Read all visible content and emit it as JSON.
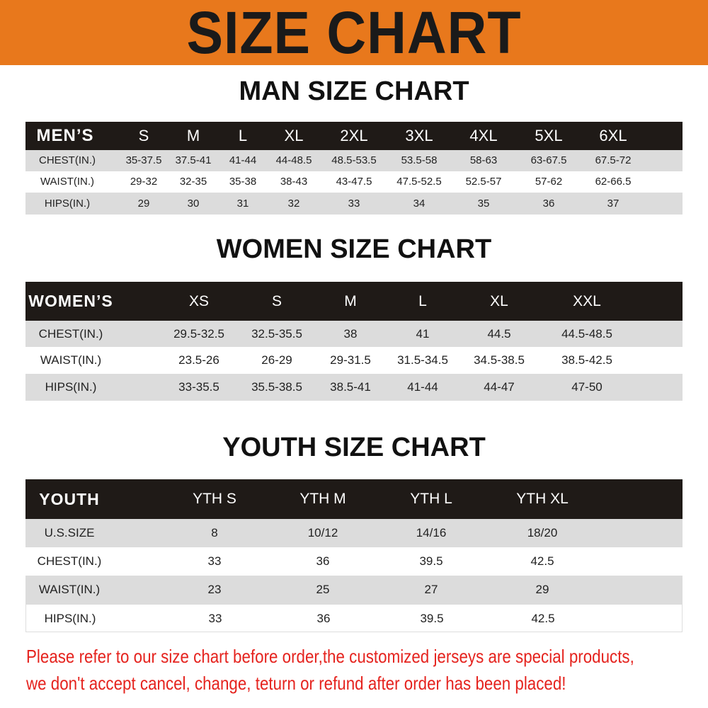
{
  "banner_title": "SIZE CHART",
  "colors": {
    "banner": "#e8781c",
    "header_row": "#1f1a17",
    "stripe": "#dcdcdc",
    "notice": "#e5231e"
  },
  "men": {
    "title": "MAN SIZE CHART",
    "header": [
      "MEN’S",
      "S",
      "M",
      "L",
      "XL",
      "2XL",
      "3XL",
      "4XL",
      "5XL",
      "6XL"
    ],
    "rows": [
      [
        "CHEST(IN.)",
        "35-37.5",
        "37.5-41",
        "41-44",
        "44-48.5",
        "48.5-53.5",
        "53.5-58",
        "58-63",
        "63-67.5",
        "67.5-72"
      ],
      [
        "WAIST(IN.)",
        "29-32",
        "32-35",
        "35-38",
        "38-43",
        "43-47.5",
        "47.5-52.5",
        "52.5-57",
        "57-62",
        "62-66.5"
      ],
      [
        "HIPS(IN.)",
        "29",
        "30",
        "31",
        "32",
        "33",
        "34",
        "35",
        "36",
        "37"
      ]
    ]
  },
  "women": {
    "title": "WOMEN SIZE CHART",
    "header": [
      "WOMEN’S",
      "XS",
      "S",
      "M",
      "L",
      "XL",
      "XXL"
    ],
    "rows": [
      [
        "CHEST(IN.)",
        "29.5-32.5",
        "32.5-35.5",
        "38",
        "41",
        "44.5",
        "44.5-48.5"
      ],
      [
        "WAIST(IN.)",
        "23.5-26",
        "26-29",
        "29-31.5",
        "31.5-34.5",
        "34.5-38.5",
        "38.5-42.5"
      ],
      [
        "HIPS(IN.)",
        "33-35.5",
        "35.5-38.5",
        "38.5-41",
        "41-44",
        "44-47",
        "47-50"
      ]
    ]
  },
  "youth": {
    "title": "YOUTH SIZE CHART",
    "header": [
      "YOUTH",
      "YTH S",
      "YTH M",
      "YTH L",
      "YTH XL"
    ],
    "rows": [
      [
        "U.S.SIZE",
        "8",
        "10/12",
        "14/16",
        "18/20"
      ],
      [
        "CHEST(IN.)",
        "33",
        "36",
        "39.5",
        "42.5"
      ],
      [
        "WAIST(IN.)",
        "23",
        "25",
        "27",
        "29"
      ],
      [
        "HIPS(IN.)",
        "33",
        "36",
        "39.5",
        "42.5"
      ]
    ]
  },
  "notice": [
    "Please refer to our size chart before order,the customized jerseys are special products,",
    "we don't accept cancel, change, teturn or refund after order has been placed!"
  ]
}
